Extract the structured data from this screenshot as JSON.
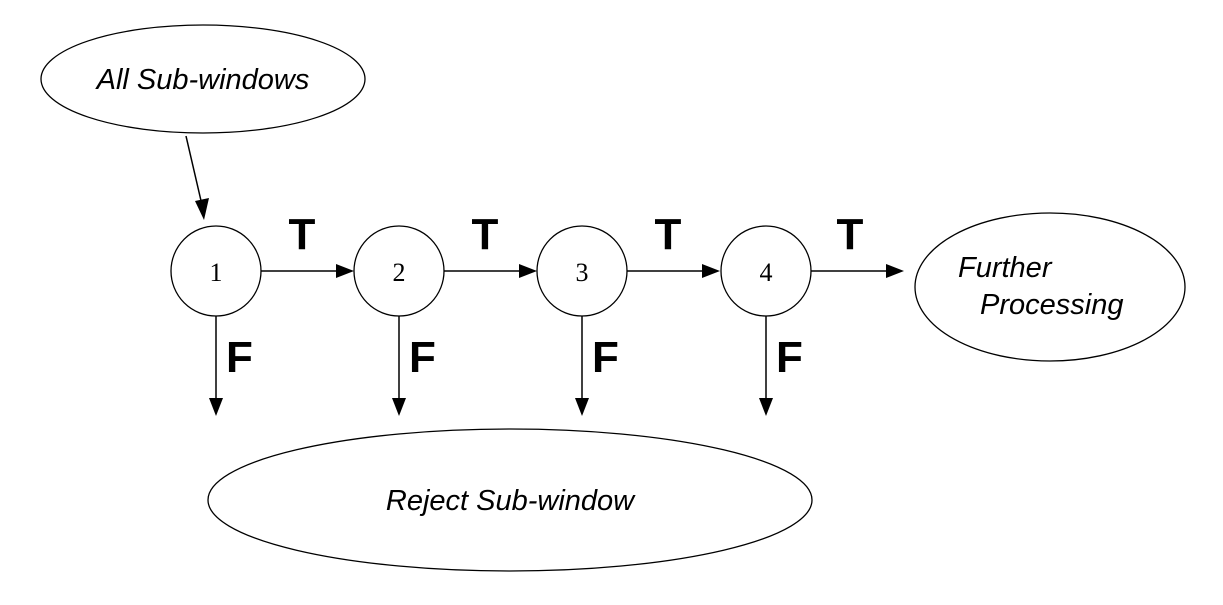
{
  "start_node": {
    "label": "All Sub-windows"
  },
  "stages": [
    {
      "label": "1",
      "true_label": "T",
      "false_label": "F"
    },
    {
      "label": "2",
      "true_label": "T",
      "false_label": "F"
    },
    {
      "label": "3",
      "true_label": "T",
      "false_label": "F"
    },
    {
      "label": "4",
      "true_label": "T",
      "false_label": "F"
    }
  ],
  "accept_node": {
    "line1": "Further",
    "line2": "Processing"
  },
  "reject_node": {
    "label": "Reject Sub-window"
  }
}
